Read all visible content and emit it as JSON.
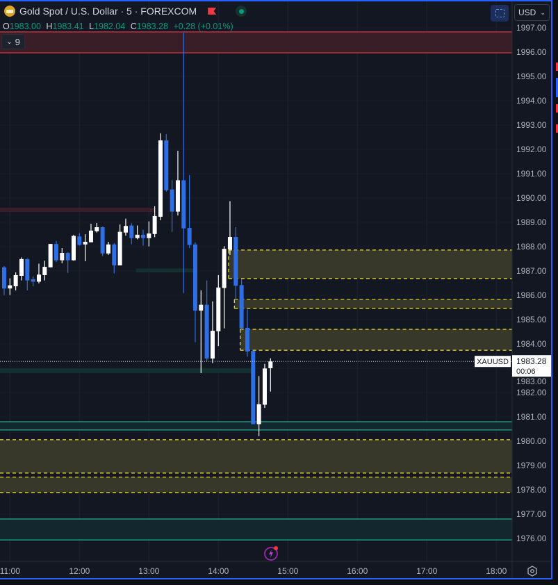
{
  "header": {
    "title": "Gold Spot / U.S. Dollar · 5 · FOREXCOM",
    "ohlc": {
      "o_label": "O",
      "o": "1983.00",
      "h_label": "H",
      "h": "1983.41",
      "l_label": "L",
      "l": "1982.04",
      "c_label": "C",
      "c": "1983.28",
      "change": "+0.28 (+0.01%)"
    },
    "indicators_count": "9",
    "currency": "USD"
  },
  "colors": {
    "background": "#131722",
    "bull": "#ffffff",
    "bear": "#2e6ee6",
    "ohlc_value": "#089981",
    "supply_zone": "#f23645",
    "fvg_border": "#f5e625",
    "demand_zone": "#22ab94",
    "frame": "#2962ff"
  },
  "icons": {
    "symbol": "gold-coin-icon",
    "flag": "red-flag-icon",
    "market_status": "green-dot-icon",
    "snapshot": "screenshot-icon",
    "alert": "lightning-icon",
    "settings": "gear-icon"
  },
  "price_label": {
    "symbol": "XAUUSD",
    "price": "1983.28",
    "countdown": "00:06"
  },
  "chart_data": {
    "type": "candlestick",
    "interval": "5",
    "grid": true,
    "ylim": [
      1975.5,
      1997.2
    ],
    "xlim": [
      "10:55",
      "18:10"
    ],
    "y_ticks": [
      "1997.00",
      "1996.00",
      "1995.00",
      "1994.00",
      "1993.00",
      "1992.00",
      "1991.00",
      "1990.00",
      "1989.00",
      "1988.00",
      "1987.00",
      "1986.00",
      "1985.00",
      "1984.00",
      "1983.00",
      "1982.00",
      "1981.00",
      "1980.00",
      "1979.00",
      "1978.00",
      "1977.00",
      "1976.00"
    ],
    "x_ticks": [
      "11:00",
      "12:00",
      "13:00",
      "14:00",
      "15:00",
      "16:00",
      "17:00",
      "18:00"
    ],
    "candles": [
      [
        "10:55",
        1987.15,
        1987.2,
        1986.01,
        1986.28
      ],
      [
        "11:00",
        1986.28,
        1986.7,
        1986.01,
        1986.41
      ],
      [
        "11:05",
        1986.37,
        1986.94,
        1986.2,
        1986.83
      ],
      [
        "11:10",
        1986.8,
        1987.56,
        1986.61,
        1987.49
      ],
      [
        "11:15",
        1987.49,
        1987.51,
        1986.2,
        1986.61
      ],
      [
        "11:20",
        1986.66,
        1986.78,
        1986.37,
        1986.56
      ],
      [
        "11:25",
        1986.56,
        1987.3,
        1986.49,
        1986.85
      ],
      [
        "11:30",
        1986.83,
        1987.42,
        1986.61,
        1987.17
      ],
      [
        "11:35",
        1987.15,
        1988.11,
        1987.15,
        1988.11
      ],
      [
        "11:40",
        1988.11,
        1988.23,
        1987.37,
        1987.44
      ],
      [
        "11:45",
        1987.44,
        1987.94,
        1987.32,
        1987.74
      ],
      [
        "11:50",
        1987.74,
        1987.77,
        1986.92,
        1987.44
      ],
      [
        "11:55",
        1987.44,
        1988.49,
        1987.42,
        1988.44
      ],
      [
        "12:00",
        1988.42,
        1988.56,
        1988.04,
        1988.07
      ],
      [
        "12:05",
        1988.09,
        1988.51,
        1987.4,
        1988.2
      ],
      [
        "12:10",
        1988.18,
        1988.94,
        1988.18,
        1988.66
      ],
      [
        "12:15",
        1988.63,
        1988.97,
        1988.58,
        1988.8
      ],
      [
        "12:20",
        1988.8,
        1988.83,
        1987.61,
        1987.72
      ],
      [
        "12:25",
        1987.72,
        1988.2,
        1987.66,
        1988.09
      ],
      [
        "12:30",
        1988.09,
        1988.14,
        1986.9,
        1987.23
      ],
      [
        "12:35",
        1987.23,
        1988.91,
        1987.23,
        1988.61
      ],
      [
        "12:40",
        1988.58,
        1989.15,
        1988.45,
        1988.85
      ],
      [
        "12:45",
        1988.87,
        1988.96,
        1988.1,
        1988.35
      ],
      [
        "12:50",
        1988.35,
        1988.87,
        1988.3,
        1988.49
      ],
      [
        "12:55",
        1988.49,
        1988.7,
        1988.04,
        1988.35
      ],
      [
        "13:00",
        1988.35,
        1989.04,
        1988.01,
        1988.54
      ],
      [
        "13:05",
        1988.52,
        1989.66,
        1988.39,
        1989.26
      ],
      [
        "13:10",
        1989.23,
        1992.66,
        1989.09,
        1992.37
      ],
      [
        "13:15",
        1992.37,
        1992.63,
        1990.26,
        1990.32
      ],
      [
        "13:20",
        1990.35,
        1990.73,
        1988.61,
        1989.44
      ],
      [
        "13:25",
        1989.44,
        1991.94,
        1989.28,
        1990.73
      ],
      [
        "13:30",
        1990.73,
        1996.8,
        1986.09,
        1988.75
      ],
      [
        "13:35",
        1988.77,
        1990.94,
        1987.94,
        1988.07
      ],
      [
        "13:40",
        1988.09,
        1988.18,
        1984.07,
        1985.37
      ],
      [
        "13:45",
        1985.37,
        1986.2,
        1982.8,
        1985.61
      ],
      [
        "13:50",
        1985.61,
        1986.61,
        1983.28,
        1983.4
      ],
      [
        "13:55",
        1983.4,
        1985.75,
        1983.21,
        1984.54
      ],
      [
        "14:00",
        1984.52,
        1986.83,
        1983.91,
        1986.32
      ],
      [
        "14:05",
        1986.3,
        1988.02,
        1984.64,
        1987.91
      ],
      [
        "14:10",
        1987.88,
        1989.87,
        1987.66,
        1988.4
      ],
      [
        "14:15",
        1988.4,
        1988.8,
        1985.8,
        1986.39
      ],
      [
        "14:20",
        1986.42,
        1986.66,
        1984.56,
        1984.64
      ],
      [
        "14:25",
        1984.66,
        1985.42,
        1983.47,
        1983.69
      ],
      [
        "14:30",
        1983.71,
        1983.71,
        1980.7,
        1980.7
      ],
      [
        "14:35",
        1980.7,
        1982.68,
        1980.2,
        1981.52
      ],
      [
        "14:40",
        1981.5,
        1983.18,
        1981.37,
        1982.99
      ],
      [
        "14:45",
        1983.0,
        1983.41,
        1982.04,
        1983.28
      ]
    ],
    "zones": [
      {
        "kind": "supply",
        "top": 1996.83,
        "bottom": 1995.97,
        "from": null,
        "to": null,
        "bordered": true
      },
      {
        "kind": "supply-faint",
        "top": 1989.6,
        "bottom": 1989.43,
        "from": null,
        "to": "13:05",
        "bordered": false
      },
      {
        "kind": "demand-faint",
        "top": 1987.1,
        "bottom": 1986.94,
        "from": "12:50",
        "to": "13:40",
        "bordered": false
      },
      {
        "kind": "demand-faint",
        "top": 1983.0,
        "bottom": 1982.8,
        "from": null,
        "to": "14:30",
        "bordered": false
      },
      {
        "kind": "fvg",
        "top": 1987.86,
        "bottom": 1986.69,
        "from": "14:10",
        "to": null
      },
      {
        "kind": "fvg",
        "top": 1985.83,
        "bottom": 1985.46,
        "from": "14:15",
        "to": null
      },
      {
        "kind": "fvg",
        "top": 1984.6,
        "bottom": 1983.74,
        "from": "14:20",
        "to": null
      },
      {
        "kind": "demand",
        "top": 1980.8,
        "bottom": 1980.46,
        "from": null,
        "to": null,
        "bordered": true
      },
      {
        "kind": "fvg",
        "top": 1980.06,
        "bottom": 1978.69,
        "from": null,
        "to": null
      },
      {
        "kind": "fvg",
        "top": 1978.52,
        "bottom": 1977.89,
        "from": null,
        "to": null
      },
      {
        "kind": "demand",
        "top": 1976.8,
        "bottom": 1975.94,
        "from": null,
        "to": null,
        "bordered": true
      }
    ],
    "last_price": 1983.28
  }
}
